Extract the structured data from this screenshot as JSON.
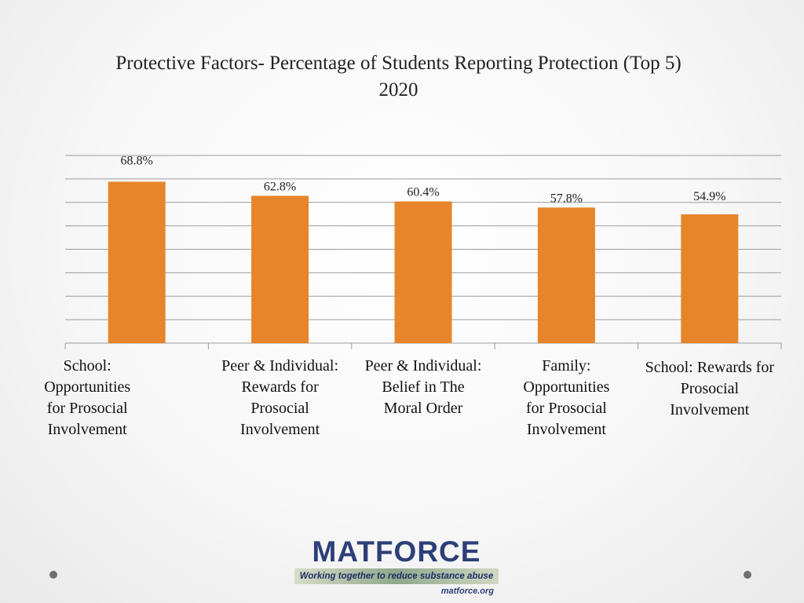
{
  "slide": {
    "title": "Protective Factors- Percentage of Students Reporting Protection (Top 5)",
    "subtitle": "2020",
    "logo_text": "MATFORCE",
    "logo_tagline": "Working together to reduce substance abuse",
    "logo_url": "matforce.org",
    "colors": {
      "bar": "#E6852A",
      "gridline": "#9c9c9c",
      "axis": "#9c9c9c"
    }
  },
  "chart_data": {
    "type": "bar",
    "title": "Protective Factors- Percentage of Students Reporting Protection (Top 5) 2020",
    "categories": [
      "School: Opportunities for Prosocial Involvement",
      "Peer & Individual: Rewards for Prosocial Involvement",
      "Peer & Individual: Belief in The Moral Order",
      "Family: Opportunities for Prosocial Involvement",
      "School: Rewards for Prosocial Involvement"
    ],
    "category_lines": [
      [
        "School:",
        "Opportunities",
        "for Prosocial",
        "Involvement"
      ],
      [
        "Peer & Individual:",
        "Rewards for",
        "Prosocial",
        "Involvement"
      ],
      [
        "Peer & Individual:",
        "Belief in The",
        "Moral Order"
      ],
      [
        "Family:",
        "Opportunities",
        "for Prosocial",
        "Involvement"
      ],
      [
        "School: Rewards for",
        "Prosocial",
        "Involvement"
      ]
    ],
    "values": [
      68.8,
      62.8,
      60.4,
      57.8,
      54.9
    ],
    "data_labels": [
      "68.8%",
      "62.8%",
      "60.4%",
      "57.8%",
      "54.9%"
    ],
    "ylim": [
      0,
      80
    ],
    "y_gridline_step": 10,
    "grid": true,
    "y_tick_labels_visible": false,
    "xlabel": "",
    "ylabel": ""
  }
}
